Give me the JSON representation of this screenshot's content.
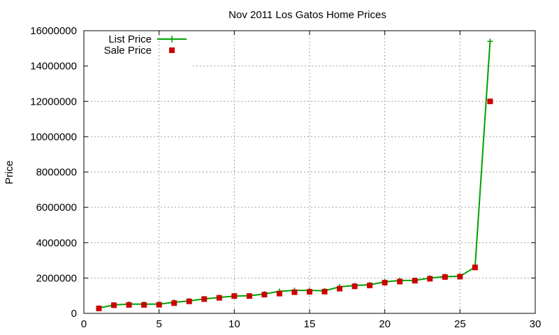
{
  "chart_data": {
    "type": "line",
    "title": "Nov 2011 Los Gatos Home Prices",
    "xlabel": "",
    "ylabel": "Price",
    "xlim": [
      0,
      30
    ],
    "ylim": [
      0,
      16000000
    ],
    "xticks": [
      0,
      5,
      10,
      15,
      20,
      25,
      30
    ],
    "yticks": [
      0,
      2000000,
      4000000,
      6000000,
      8000000,
      10000000,
      12000000,
      14000000,
      16000000
    ],
    "grid": true,
    "legend_position": "top-left",
    "series": [
      {
        "name": "List Price",
        "style": "line-plus",
        "color": "#00a000",
        "x": [
          1,
          2,
          3,
          4,
          5,
          6,
          7,
          8,
          9,
          10,
          11,
          12,
          13,
          14,
          15,
          16,
          17,
          18,
          19,
          20,
          21,
          22,
          23,
          24,
          25,
          26,
          27
        ],
        "y": [
          300000,
          480000,
          520000,
          520000,
          520000,
          630000,
          700000,
          820000,
          900000,
          980000,
          1000000,
          1100000,
          1250000,
          1300000,
          1300000,
          1280000,
          1500000,
          1580000,
          1620000,
          1780000,
          1860000,
          1870000,
          2000000,
          2080000,
          2100000,
          2620000,
          15400000
        ]
      },
      {
        "name": "Sale Price",
        "style": "points-square",
        "color": "#cc0000",
        "x": [
          1,
          2,
          3,
          4,
          5,
          6,
          7,
          8,
          9,
          10,
          11,
          12,
          13,
          14,
          15,
          16,
          17,
          18,
          19,
          20,
          21,
          22,
          23,
          24,
          25,
          26,
          27
        ],
        "y": [
          280000,
          460000,
          480000,
          480000,
          490000,
          580000,
          680000,
          810000,
          880000,
          980000,
          980000,
          1060000,
          1120000,
          1200000,
          1220000,
          1230000,
          1400000,
          1530000,
          1580000,
          1740000,
          1800000,
          1850000,
          1960000,
          2060000,
          2080000,
          2600000,
          12000000
        ]
      }
    ]
  }
}
